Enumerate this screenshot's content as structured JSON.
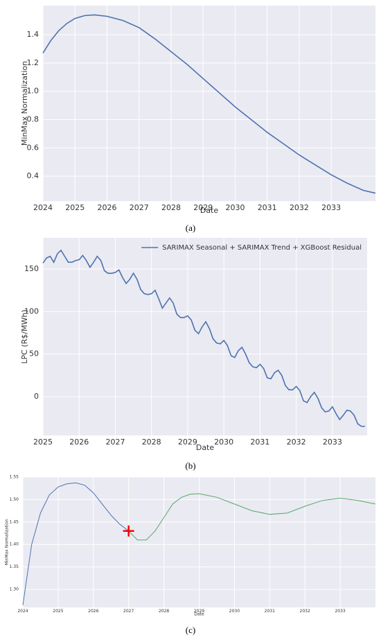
{
  "chart_data": [
    {
      "type": "line",
      "caption": "(a)",
      "xlabel": "Date",
      "ylabel": "MinMax Normalization",
      "grid": true,
      "xlim": [
        2024,
        2034.38
      ],
      "ylim": [
        0.224,
        1.606
      ],
      "xticks": [
        2024,
        2025,
        2026,
        2027,
        2028,
        2029,
        2030,
        2031,
        2032,
        2033
      ],
      "yticks": [
        0.4,
        0.6,
        0.8,
        {
          "value": 1,
          "label": "1.0"
        },
        1.2,
        1.4
      ],
      "series": [
        {
          "color": "#4c72b0",
          "x": [
            2024,
            2024.25,
            2024.5,
            2024.75,
            2025,
            2025.3,
            2025.6,
            2026,
            2026.5,
            2027,
            2027.5,
            2028,
            2028.5,
            2029,
            2029.5,
            2030,
            2030.5,
            2031,
            2031.5,
            2032,
            2032.5,
            2033,
            2033.5,
            2034,
            2034.38
          ],
          "values": [
            1.27,
            1.36,
            1.43,
            1.48,
            1.515,
            1.535,
            1.54,
            1.53,
            1.5,
            1.45,
            1.37,
            1.28,
            1.19,
            1.09,
            0.99,
            0.89,
            0.8,
            0.71,
            0.63,
            0.55,
            0.48,
            0.41,
            0.35,
            0.3,
            0.28
          ]
        }
      ]
    },
    {
      "type": "line",
      "caption": "(b)",
      "xlabel": "Date",
      "ylabel": "LPC (R$/MWh)",
      "grid": true,
      "legend": "upper right",
      "xlim": [
        2025,
        2033.96
      ],
      "ylim": [
        -45.7,
        186.7
      ],
      "xticks": [
        2025,
        2026,
        2027,
        2028,
        2029,
        2030,
        2031,
        2032,
        2033
      ],
      "yticks": [
        0,
        50,
        100,
        150
      ],
      "series": [
        {
          "name": "SARIMAX Seasonal + SARIMAX Trend + XGBoost Residual",
          "color": "#4c72b0",
          "x": [
            2025.0,
            2025.1,
            2025.2,
            2025.3,
            2025.4,
            2025.5,
            2025.6,
            2025.7,
            2025.8,
            2025.9,
            2026.0,
            2026.1,
            2026.2,
            2026.3,
            2026.4,
            2026.5,
            2026.6,
            2026.7,
            2026.8,
            2026.9,
            2027.0,
            2027.1,
            2027.2,
            2027.3,
            2027.4,
            2027.5,
            2027.6,
            2027.7,
            2027.8,
            2027.9,
            2028.0,
            2028.1,
            2028.2,
            2028.3,
            2028.4,
            2028.5,
            2028.6,
            2028.7,
            2028.8,
            2028.9,
            2029.0,
            2029.1,
            2029.2,
            2029.3,
            2029.4,
            2029.5,
            2029.6,
            2029.7,
            2029.8,
            2029.9,
            2030.0,
            2030.1,
            2030.2,
            2030.3,
            2030.4,
            2030.5,
            2030.6,
            2030.7,
            2030.8,
            2030.9,
            2031.0,
            2031.1,
            2031.2,
            2031.3,
            2031.4,
            2031.5,
            2031.6,
            2031.7,
            2031.8,
            2031.9,
            2032.0,
            2032.1,
            2032.2,
            2032.3,
            2032.4,
            2032.5,
            2032.6,
            2032.7,
            2032.8,
            2032.9,
            2033.0,
            2033.1,
            2033.2,
            2033.3,
            2033.4,
            2033.5,
            2033.6,
            2033.7,
            2033.8,
            2033.9
          ],
          "values": [
            157,
            163,
            165,
            158,
            168,
            172,
            165,
            158,
            158,
            160,
            161,
            166,
            160,
            152,
            158,
            165,
            160,
            148,
            145,
            145,
            146,
            149,
            140,
            133,
            138,
            145,
            138,
            126,
            121,
            120,
            121,
            125,
            115,
            104,
            110,
            116,
            110,
            97,
            93,
            93,
            95,
            90,
            78,
            74,
            82,
            88,
            80,
            68,
            63,
            62,
            66,
            60,
            48,
            46,
            54,
            58,
            50,
            40,
            35,
            34,
            38,
            33,
            22,
            21,
            28,
            31,
            25,
            13,
            8,
            8,
            12,
            7,
            -5,
            -7,
            0,
            5,
            -2,
            -13,
            -18,
            -17,
            -12,
            -20,
            -27,
            -22,
            -16,
            -17,
            -22,
            -32,
            -35,
            -35
          ]
        }
      ]
    },
    {
      "type": "line",
      "caption": "(c)",
      "xlabel": "Date",
      "ylabel": "MinMax Normalization",
      "grid": true,
      "xlim": [
        2024,
        2034
      ],
      "ylim": [
        1.26,
        1.55
      ],
      "xticks": [
        2024,
        2025,
        2026,
        2027,
        2028,
        2029,
        2030,
        2031,
        2032,
        2033
      ],
      "yticks": [
        {
          "value": 1.3,
          "label": "1.30"
        },
        1.35,
        {
          "value": 1.4,
          "label": "1.40"
        },
        1.45,
        {
          "value": 1.5,
          "label": "1.50"
        },
        1.55
      ],
      "marker": {
        "x": 2027,
        "y": 1.43,
        "color": "#ff0000"
      },
      "series": [
        {
          "color": "#4c72b0",
          "x": [
            2024,
            2024.25,
            2024.5,
            2024.75,
            2025,
            2025.25,
            2025.5,
            2025.75,
            2026,
            2026.25,
            2026.5,
            2026.75,
            2027
          ],
          "values": [
            1.265,
            1.4,
            1.47,
            1.51,
            1.528,
            1.535,
            1.537,
            1.532,
            1.515,
            1.49,
            1.465,
            1.445,
            1.43
          ]
        },
        {
          "color": "#55a868",
          "x": [
            2027,
            2027.25,
            2027.5,
            2027.75,
            2028,
            2028.25,
            2028.5,
            2028.75,
            2029,
            2029.5,
            2030,
            2030.5,
            2031,
            2031.5,
            2032,
            2032.5,
            2033,
            2033.5,
            2034
          ],
          "values": [
            1.43,
            1.41,
            1.41,
            1.43,
            1.46,
            1.49,
            1.505,
            1.512,
            1.513,
            1.505,
            1.49,
            1.475,
            1.467,
            1.47,
            1.485,
            1.498,
            1.503,
            1.498,
            1.49
          ]
        }
      ]
    }
  ]
}
